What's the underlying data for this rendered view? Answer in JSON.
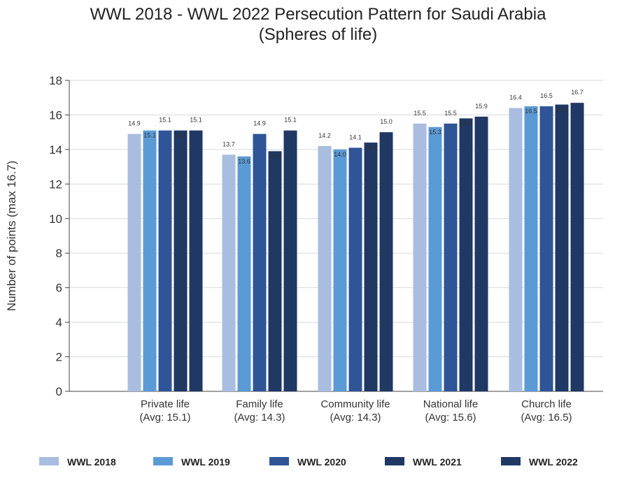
{
  "chart_data": {
    "type": "bar",
    "title": "WWL 2018 - WWL 2022 Persecution Pattern for Saudi Arabia",
    "subtitle": "(Spheres of life)",
    "ylabel": "Number of points (max 16.7)",
    "xlabel": "",
    "ylim": [
      0,
      18
    ],
    "yticks": [
      0,
      2,
      4,
      6,
      8,
      10,
      12,
      14,
      16,
      18
    ],
    "grid": true,
    "legend_position": "bottom",
    "categories": [
      [
        "Private life",
        "(Avg: 15.1)"
      ],
      [
        "Family life",
        "(Avg: 14.3)"
      ],
      [
        "Community life",
        "(Avg: 14.3)"
      ],
      [
        "National life",
        "(Avg: 15.6)"
      ],
      [
        "Church life",
        "(Avg: 16.5)"
      ]
    ],
    "series": [
      {
        "name": "WWL 2018",
        "color": "#a9bde0",
        "values": [
          14.9,
          13.7,
          14.2,
          15.5,
          16.4
        ]
      },
      {
        "name": "WWL 2019",
        "color": "#5b9bd5",
        "values": [
          15.1,
          13.6,
          14.0,
          15.3,
          16.5
        ]
      },
      {
        "name": "WWL 2020",
        "color": "#2f5597",
        "values": [
          15.1,
          14.9,
          14.1,
          15.5,
          16.5
        ]
      },
      {
        "name": "WWL 2021",
        "color": "#1f3864",
        "values": [
          15.1,
          13.9,
          14.4,
          15.8,
          16.6
        ]
      },
      {
        "name": "WWL 2022",
        "color": "#203864",
        "values": [
          15.1,
          15.1,
          15.0,
          15.9,
          16.7
        ]
      }
    ]
  }
}
